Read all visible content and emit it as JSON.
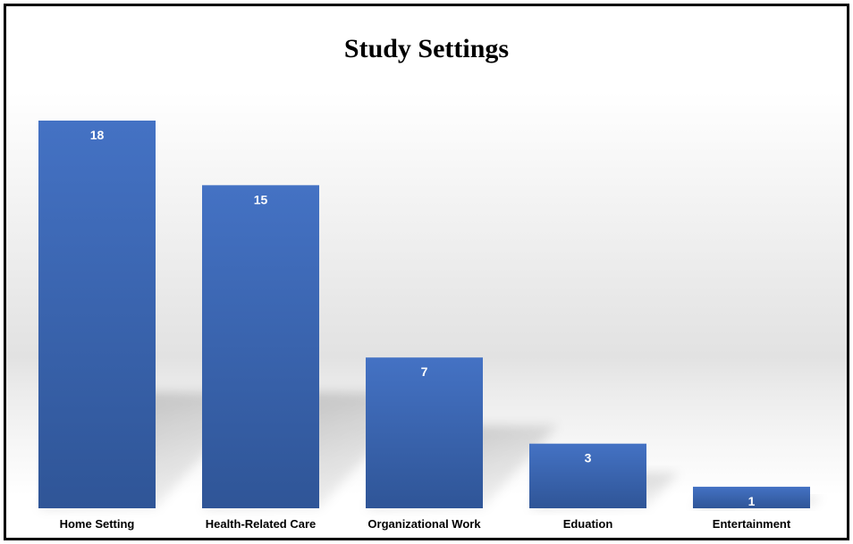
{
  "chart_data": {
    "type": "bar",
    "title": "Study Settings",
    "categories": [
      "Home Setting",
      "Health-Related Care",
      "Organizational Work",
      "Eduation",
      "Entertainment"
    ],
    "values": [
      18,
      15,
      7,
      3,
      1
    ],
    "xlabel": "",
    "ylabel": "",
    "ylim": [
      0,
      18
    ],
    "grid": false,
    "legend": "none",
    "bar_color": "#4472c4",
    "bar_color_dark": "#2f5597",
    "data_label_color": "#ffffff"
  }
}
